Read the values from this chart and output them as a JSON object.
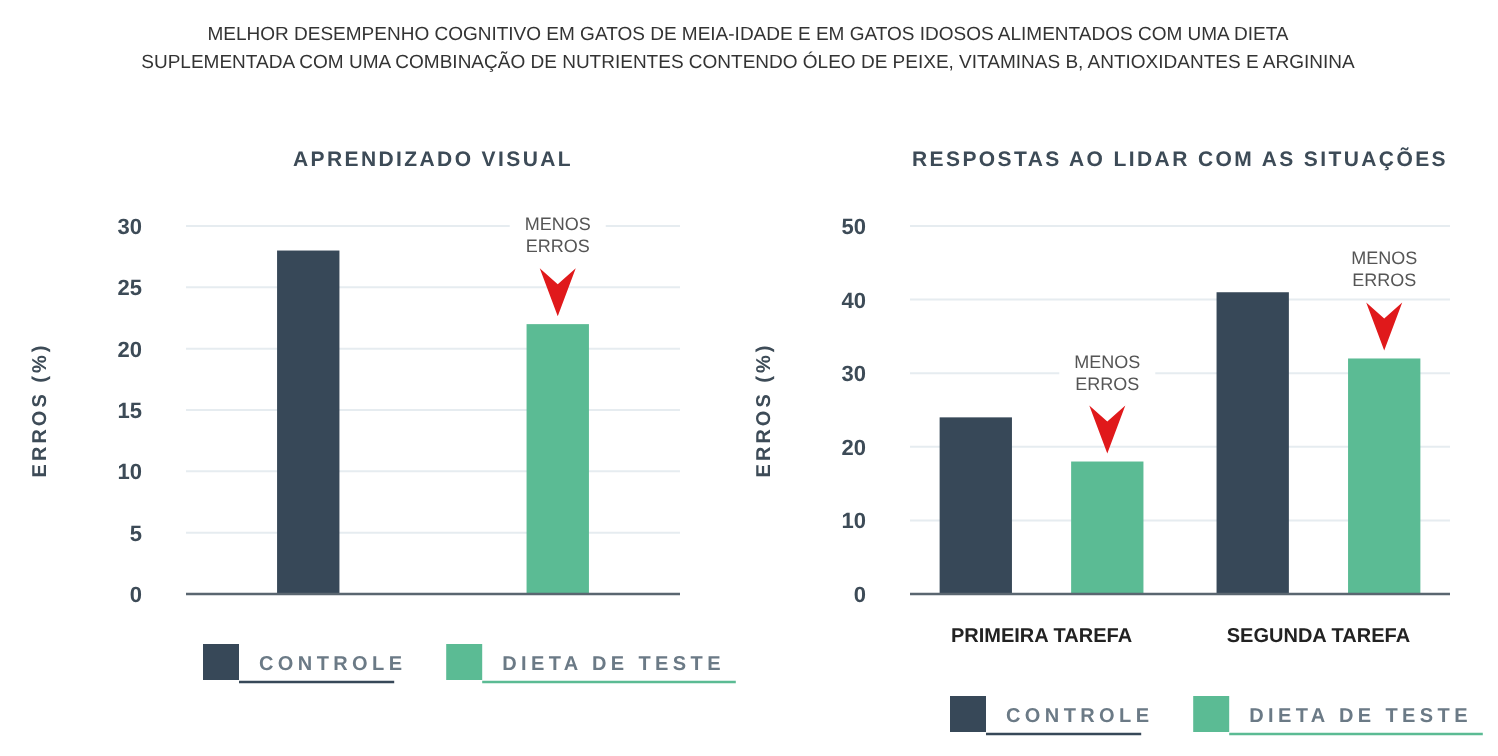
{
  "chart_data": [
    {
      "type": "bar",
      "title": "APRENDIZADO VISUAL",
      "ylabel": "ERROS (%)",
      "categories": [
        null
      ],
      "series": [
        {
          "name": "CONTROLE",
          "color": "#374858",
          "values": [
            28
          ]
        },
        {
          "name": "DIETA DE TESTE",
          "color": "#5bbb94",
          "values": [
            22
          ]
        }
      ],
      "ylim": [
        0,
        30
      ],
      "yticks": [
        0,
        5,
        10,
        15,
        20,
        25,
        30
      ],
      "grid": "y",
      "legend": "bottom",
      "annotations": [
        "MELHOR DESEMPENHO COGNITIVO EM GATOS DE MEIA-IDADE E EM GATOS IDOSOS ALIMENTADOS COM UMA DIETA SUPLEMENTADA COM UMA COMBINAÇÃO DE NUTRIENTES CONTENDO ÓLEO DE PEIXE, VITAMINAS B, ANTIOXIDANTES E ARGININA",
        "MENOS ERROS"
      ]
    },
    {
      "type": "bar",
      "title": "RESPOSTAS AO LIDAR COM AS SITUAÇÕES",
      "ylabel": "ERROS (%)",
      "categories": [
        "PRIMEIRA TAREFA",
        "SEGUNDA TAREFA"
      ],
      "series": [
        {
          "name": "CONTROLE",
          "color": "#374858",
          "values": [
            24,
            41
          ]
        },
        {
          "name": "DIETA DE TESTE",
          "color": "#5bbb94",
          "values": [
            18,
            32
          ]
        }
      ],
      "ylim": [
        0,
        50
      ],
      "yticks": [
        0,
        10,
        20,
        30,
        40,
        50
      ],
      "grid": "y",
      "legend": "bottom",
      "annotations": [
        "MENOS ERROS",
        "MENOS ERROS"
      ]
    }
  ]
}
